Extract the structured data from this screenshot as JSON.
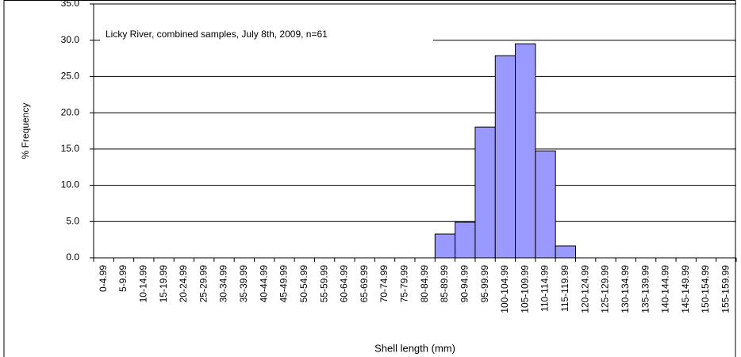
{
  "chart_data": {
    "type": "bar",
    "annotation": "Licky River, combined samples, July 8th, 2009, n=61",
    "x_label": "Shell length (mm)",
    "y_label": "% Frequency",
    "categories": [
      "0-4.99",
      "5-9.99",
      "10-14.99",
      "15-19.99",
      "20-24.99",
      "25-29.99",
      "30-34.99",
      "35-39.99",
      "40-44.99",
      "45-49.99",
      "50-54.99",
      "55-59.99",
      "60-64.99",
      "65-69.99",
      "70-74.99",
      "75-79.99",
      "80-84.99",
      "85-89.99",
      "90-94.99",
      "95-99.99",
      "100-104.99",
      "105-109.99",
      "110-114.99",
      "115-119.99",
      "120-124.99",
      "125-129.99",
      "130-134.99",
      "135-139.99",
      "140-144.99",
      "145-149.99",
      "150-154.99",
      "155-159.99"
    ],
    "values": [
      0,
      0,
      0,
      0,
      0,
      0,
      0,
      0,
      0,
      0,
      0,
      0,
      0,
      0,
      0,
      0,
      0,
      3.28,
      4.92,
      18.03,
      27.87,
      29.51,
      14.75,
      1.64,
      0,
      0,
      0,
      0,
      0,
      0,
      0,
      0
    ],
    "color": "#9999ff",
    "ylim": [
      0,
      35
    ],
    "yticks": [
      {
        "value": 0,
        "label": "0.0"
      },
      {
        "value": 5,
        "label": "5.0"
      },
      {
        "value": 10,
        "label": "10.0"
      },
      {
        "value": 15,
        "label": "15.0"
      },
      {
        "value": 20,
        "label": "20.0"
      },
      {
        "value": 25,
        "label": "25.0"
      },
      {
        "value": 30,
        "label": "30.0"
      },
      {
        "value": 35,
        "label": "35.0"
      }
    ],
    "grid": true
  }
}
